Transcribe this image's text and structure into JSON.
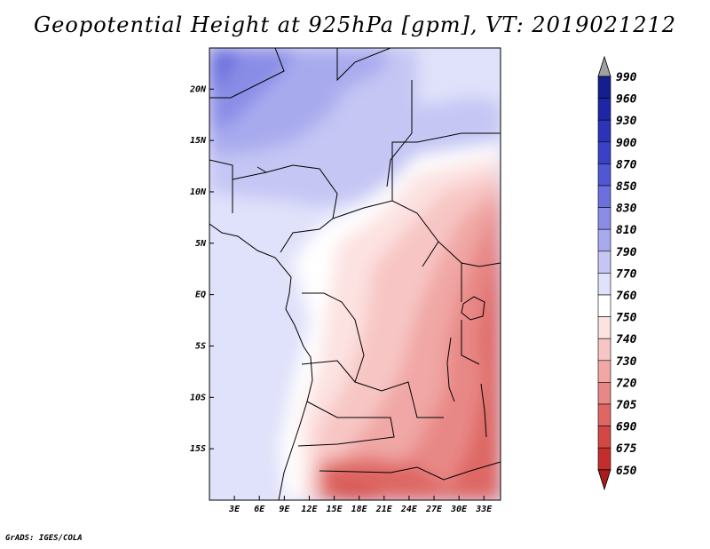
{
  "title": "Geopotential Height at 925hPa [gpm], VT: 2019021212",
  "credit": "GrADS: IGES/COLA",
  "map": {
    "lon_range": [
      0,
      35
    ],
    "lat_range": [
      -20,
      24
    ],
    "lon_ticks": [
      {
        "value": 3,
        "label": "3E"
      },
      {
        "value": 6,
        "label": "6E"
      },
      {
        "value": 9,
        "label": "9E"
      },
      {
        "value": 12,
        "label": "12E"
      },
      {
        "value": 15,
        "label": "15E"
      },
      {
        "value": 18,
        "label": "18E"
      },
      {
        "value": 21,
        "label": "21E"
      },
      {
        "value": 24,
        "label": "24E"
      },
      {
        "value": 27,
        "label": "27E"
      },
      {
        "value": 30,
        "label": "30E"
      },
      {
        "value": 33,
        "label": "33E"
      }
    ],
    "lat_ticks": [
      {
        "value": 20,
        "label": "20N"
      },
      {
        "value": 15,
        "label": "15N"
      },
      {
        "value": 10,
        "label": "10N"
      },
      {
        "value": 5,
        "label": "5N"
      },
      {
        "value": 0,
        "label": "EQ"
      },
      {
        "value": -5,
        "label": "5S"
      },
      {
        "value": -10,
        "label": "10S"
      },
      {
        "value": -15,
        "label": "15S"
      }
    ]
  },
  "colorbar": {
    "levels": [
      {
        "label": "990",
        "color": "#161d8c"
      },
      {
        "label": "960",
        "color": "#1f26a6"
      },
      {
        "label": "930",
        "color": "#2c33b8"
      },
      {
        "label": "900",
        "color": "#3b41c6"
      },
      {
        "label": "870",
        "color": "#5157d3"
      },
      {
        "label": "850",
        "color": "#6c70dc"
      },
      {
        "label": "830",
        "color": "#8a8de6"
      },
      {
        "label": "810",
        "color": "#a8aaee"
      },
      {
        "label": "790",
        "color": "#c5c6f4"
      },
      {
        "label": "770",
        "color": "#e0e1fa"
      },
      {
        "label": "760",
        "color": "#ffffff"
      },
      {
        "label": "750",
        "color": "#fce2e1"
      },
      {
        "label": "740",
        "color": "#f7c6c4"
      },
      {
        "label": "730",
        "color": "#f0a7a5"
      },
      {
        "label": "720",
        "color": "#e88886"
      },
      {
        "label": "705",
        "color": "#de6764"
      },
      {
        "label": "690",
        "color": "#d34845"
      },
      {
        "label": "675",
        "color": "#c32e2c"
      },
      {
        "label": "650",
        "color": "#a81c1a"
      }
    ],
    "top_color": "#a0a0a0",
    "bottom_color": "#a81c1a"
  }
}
